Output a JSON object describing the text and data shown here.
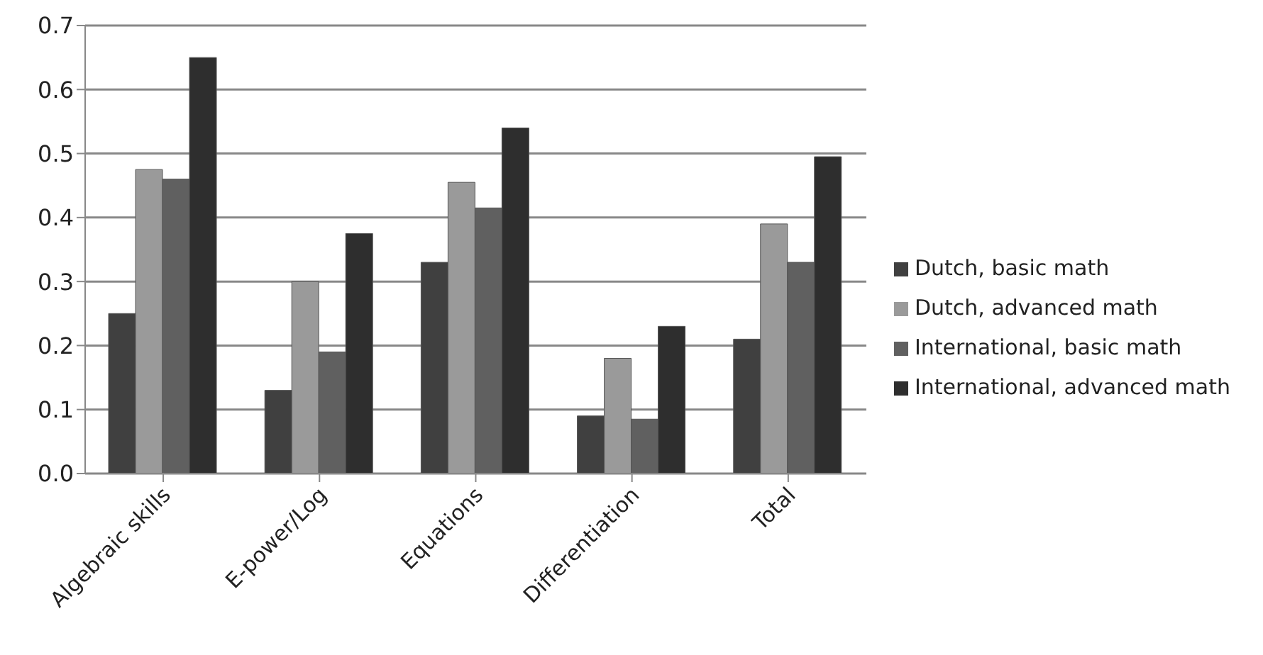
{
  "chart_data": {
    "type": "bar",
    "categories": [
      "Algebraic skills",
      "E-power/Log",
      "Equations",
      "Differentiation",
      "Total"
    ],
    "series": [
      {
        "name": "Dutch, basic math",
        "color": "#404040",
        "values": [
          0.25,
          0.13,
          0.33,
          0.09,
          0.21
        ]
      },
      {
        "name": "Dutch, advanced math",
        "color": "#9a9a9a",
        "values": [
          0.475,
          0.3,
          0.455,
          0.18,
          0.39
        ]
      },
      {
        "name": "International, basic math",
        "color": "#606060",
        "values": [
          0.46,
          0.19,
          0.415,
          0.085,
          0.33
        ]
      },
      {
        "name": "International, advanced math",
        "color": "#2e2e2e",
        "values": [
          0.65,
          0.375,
          0.54,
          0.23,
          0.495
        ]
      }
    ],
    "ylim": [
      0,
      0.7
    ],
    "yticks": [
      {
        "value": 0,
        "label": "0.0"
      },
      0.1,
      0.2,
      0.3,
      0.4,
      0.5,
      0.6,
      0.7
    ],
    "grid": "y",
    "legend": "right"
  }
}
